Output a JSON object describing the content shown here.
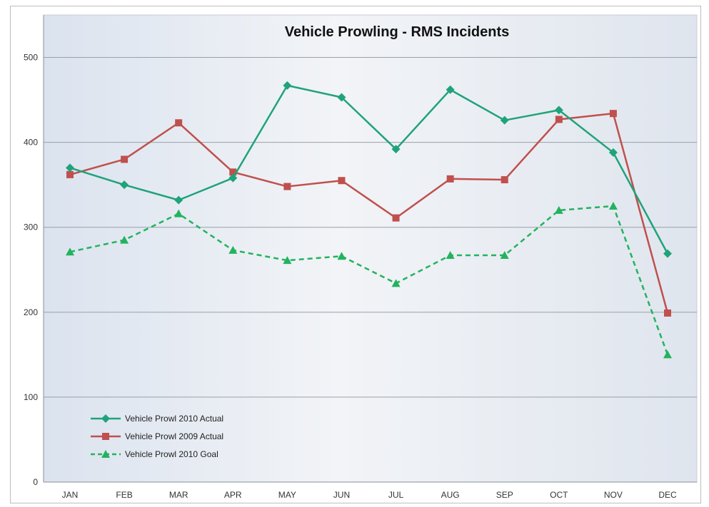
{
  "chart_data": {
    "type": "line",
    "title": "Vehicle Prowling - RMS Incidents",
    "xlabel": "",
    "ylabel": "",
    "categories": [
      "JAN",
      "FEB",
      "MAR",
      "APR",
      "MAY",
      "JUN",
      "JUL",
      "AUG",
      "SEP",
      "OCT",
      "NOV",
      "DEC"
    ],
    "ylim": [
      0,
      550
    ],
    "yticks": [
      0,
      100,
      200,
      300,
      400,
      500
    ],
    "grid": true,
    "legend_position": "bottom-left",
    "series": [
      {
        "name": "Vehicle Prowl 2010 Actual",
        "color": "#1fa37a",
        "marker": "diamond",
        "dash": "solid",
        "values": [
          370,
          350,
          332,
          358,
          467,
          453,
          392,
          462,
          426,
          438,
          388,
          269
        ]
      },
      {
        "name": "Vehicle Prowl 2009 Actual",
        "color": "#c0504d",
        "marker": "square",
        "dash": "solid",
        "values": [
          362,
          380,
          423,
          365,
          348,
          355,
          311,
          357,
          356,
          427,
          434,
          199
        ]
      },
      {
        "name": "Vehicle Prowl 2010 Goal",
        "color": "#22b35e",
        "marker": "triangle",
        "dash": "dashed",
        "values": [
          271,
          285,
          316,
          273,
          261,
          266,
          234,
          267,
          267,
          320,
          325,
          150
        ]
      }
    ]
  }
}
